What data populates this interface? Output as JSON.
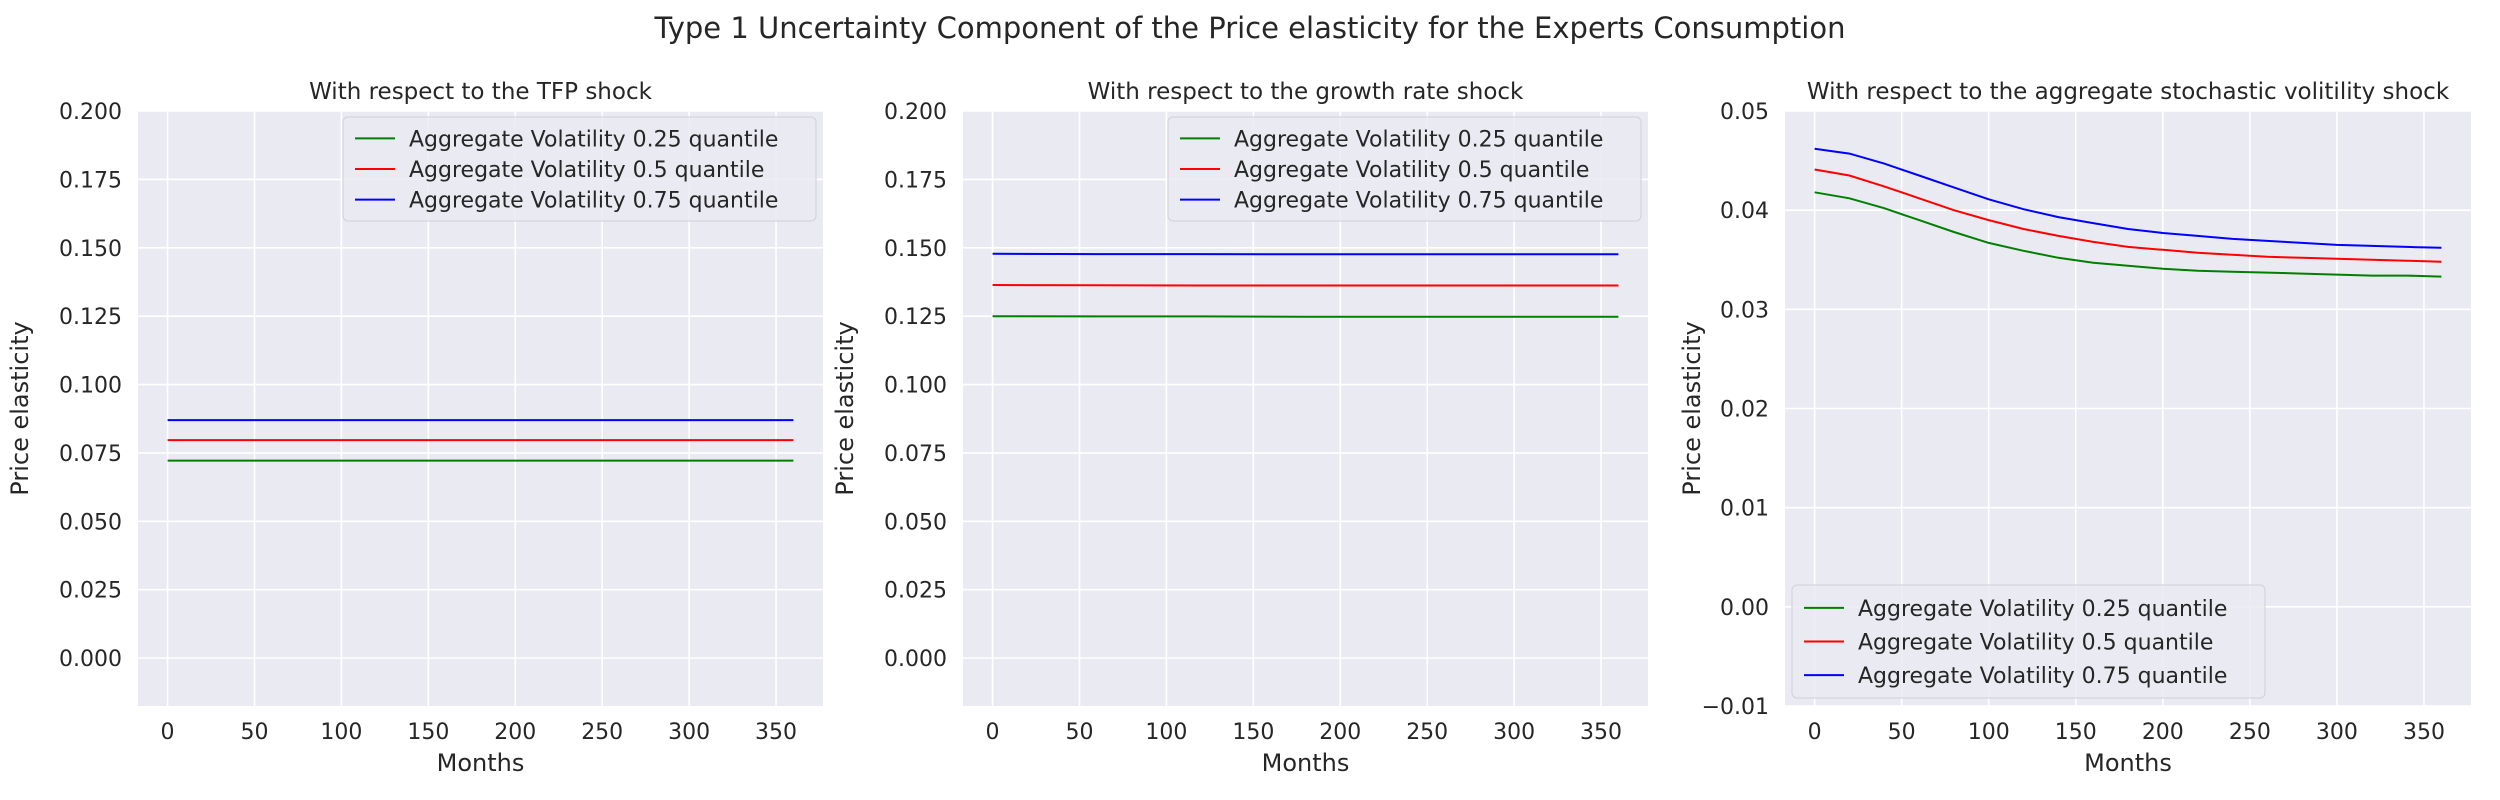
{
  "figure": {
    "title": "Type 1 Uncertainty Component of the Price elasticity for the Experts Consumption"
  },
  "chart_data": [
    {
      "type": "line",
      "title": "With respect to the TFP shock",
      "xlabel": "Months",
      "ylabel": "Price elasticity",
      "xlim": [
        -17,
        377
      ],
      "ylim": [
        -0.0175,
        0.2
      ],
      "xticks": [
        0,
        50,
        100,
        150,
        200,
        250,
        300,
        350
      ],
      "yticks": [
        0.0,
        0.025,
        0.05,
        0.075,
        0.1,
        0.125,
        0.15,
        0.175,
        0.2
      ],
      "ytick_labels": [
        "0.000",
        "0.025",
        "0.050",
        "0.075",
        "0.100",
        "0.125",
        "0.150",
        "0.175",
        "0.200"
      ],
      "grid": true,
      "legend_position": "top-right",
      "x": [
        0,
        60,
        120,
        180,
        240,
        300,
        360
      ],
      "series": [
        {
          "name": "Aggregate Volatility 0.25 quantile",
          "color": "#008000",
          "values": [
            0.0722,
            0.0722,
            0.0722,
            0.0722,
            0.0722,
            0.0722,
            0.0722
          ]
        },
        {
          "name": "Aggregate Volatility 0.5 quantile",
          "color": "#ff0000",
          "values": [
            0.0797,
            0.0797,
            0.0797,
            0.0797,
            0.0797,
            0.0797,
            0.0797
          ]
        },
        {
          "name": "Aggregate Volatility 0.75 quantile",
          "color": "#0000ff",
          "values": [
            0.087,
            0.087,
            0.087,
            0.087,
            0.087,
            0.087,
            0.087
          ]
        }
      ]
    },
    {
      "type": "line",
      "title": "With respect to the growth rate shock",
      "xlabel": "Months",
      "ylabel": "Price elasticity",
      "xlim": [
        -17,
        377
      ],
      "ylim": [
        -0.0175,
        0.2
      ],
      "xticks": [
        0,
        50,
        100,
        150,
        200,
        250,
        300,
        350
      ],
      "yticks": [
        0.0,
        0.025,
        0.05,
        0.075,
        0.1,
        0.125,
        0.15,
        0.175,
        0.2
      ],
      "ytick_labels": [
        "0.000",
        "0.025",
        "0.050",
        "0.075",
        "0.100",
        "0.125",
        "0.150",
        "0.175",
        "0.200"
      ],
      "grid": true,
      "legend_position": "top-right",
      "x": [
        0,
        60,
        120,
        180,
        240,
        300,
        360
      ],
      "series": [
        {
          "name": "Aggregate Volatility 0.25 quantile",
          "color": "#008000",
          "values": [
            0.125,
            0.1249,
            0.1249,
            0.1248,
            0.1248,
            0.1248,
            0.1248
          ]
        },
        {
          "name": "Aggregate Volatility 0.5 quantile",
          "color": "#ff0000",
          "values": [
            0.1364,
            0.1363,
            0.1362,
            0.1362,
            0.1362,
            0.1362,
            0.1362
          ]
        },
        {
          "name": "Aggregate Volatility 0.75 quantile",
          "color": "#0000ff",
          "values": [
            0.1478,
            0.1477,
            0.1477,
            0.1476,
            0.1476,
            0.1476,
            0.1476
          ]
        }
      ]
    },
    {
      "type": "line",
      "title": "With respect to the aggregate stochastic volitility shock",
      "xlabel": "Months",
      "ylabel": "Price elasticity",
      "xlim": [
        -17,
        377
      ],
      "ylim": [
        -0.01,
        0.05
      ],
      "xticks": [
        0,
        50,
        100,
        150,
        200,
        250,
        300,
        350
      ],
      "yticks": [
        -0.01,
        0.0,
        0.01,
        0.02,
        0.03,
        0.04,
        0.05
      ],
      "ytick_labels": [
        "−0.01",
        "0.00",
        "0.01",
        "0.02",
        "0.03",
        "0.04",
        "0.05"
      ],
      "grid": true,
      "legend_position": "lower-left",
      "x": [
        0,
        20,
        40,
        60,
        80,
        100,
        120,
        140,
        160,
        180,
        200,
        220,
        240,
        260,
        280,
        300,
        320,
        340,
        360
      ],
      "series": [
        {
          "name": "Aggregate Volatility 0.25 quantile",
          "color": "#008000",
          "values": [
            0.0418,
            0.0412,
            0.0402,
            0.039,
            0.0378,
            0.0367,
            0.0359,
            0.0352,
            0.0347,
            0.0344,
            0.0341,
            0.0339,
            0.0338,
            0.0337,
            0.0336,
            0.0335,
            0.0334,
            0.0334,
            0.0333
          ]
        },
        {
          "name": "Aggregate Volatility 0.5 quantile",
          "color": "#ff0000",
          "values": [
            0.0441,
            0.0435,
            0.0424,
            0.0412,
            0.04,
            0.039,
            0.0381,
            0.0374,
            0.0368,
            0.0363,
            0.036,
            0.0357,
            0.0355,
            0.0353,
            0.0352,
            0.0351,
            0.035,
            0.0349,
            0.0348
          ]
        },
        {
          "name": "Aggregate Volatility 0.75 quantile",
          "color": "#0000ff",
          "values": [
            0.0462,
            0.0457,
            0.0447,
            0.0435,
            0.0423,
            0.0411,
            0.0401,
            0.0393,
            0.0387,
            0.0381,
            0.0377,
            0.0374,
            0.0371,
            0.0369,
            0.0367,
            0.0365,
            0.0364,
            0.0363,
            0.0362
          ]
        }
      ]
    }
  ]
}
